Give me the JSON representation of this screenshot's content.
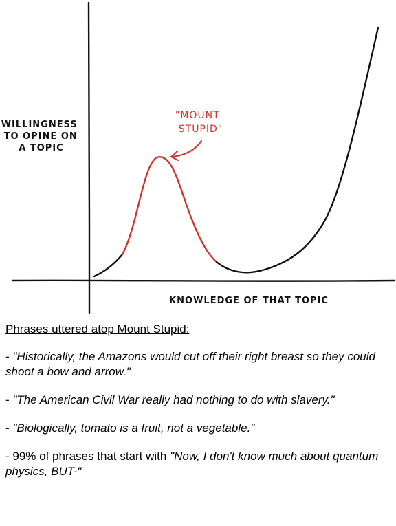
{
  "comic": {
    "y_axis_label": [
      "WILLINGNESS",
      "TO OPINE ON",
      "A TOPIC"
    ],
    "x_axis_label": "KNOWLEDGE OF THAT TOPIC",
    "annotation": [
      "\"MOUNT",
      "STUPID\""
    ],
    "colors": {
      "ink": "#111111",
      "highlight": "#d3312c"
    }
  },
  "caption": {
    "title": "Phrases uttered atop Mount Stupid:",
    "phrases": [
      {
        "prefix": "- ",
        "quote": "\"Historically, the Amazons would cut off their right breast so they could shoot a bow and arrow.\""
      },
      {
        "prefix": "- ",
        "quote": "\"The American Civil War really had nothing to do with slavery.\""
      },
      {
        "prefix": "- ",
        "quote": "\"Biologically, tomato is a fruit, not a vegetable.\""
      },
      {
        "prefix": "- 99% of phrases that start with ",
        "quote": "\"Now, I don't know much about quantum physics, BUT-\""
      }
    ]
  }
}
